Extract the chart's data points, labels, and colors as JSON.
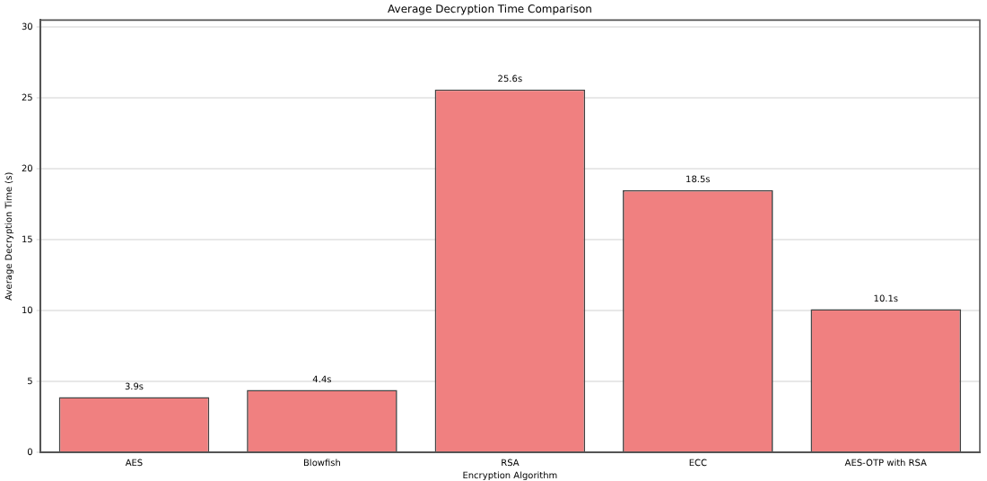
{
  "chart_data": {
    "type": "bar",
    "title": "Average Decryption Time Comparison",
    "xlabel": "Encryption Algorithm",
    "ylabel": "Average Decryption Time (s)",
    "categories": [
      "AES",
      "Blowfish",
      "RSA",
      "ECC",
      "AES-OTP with RSA"
    ],
    "values": [
      3.9,
      4.4,
      25.6,
      18.5,
      10.1
    ],
    "value_labels": [
      "3.9s",
      "4.4s",
      "25.6s",
      "18.5s",
      "10.1s"
    ],
    "color": "#f08080",
    "ylim": [
      0,
      30.5
    ],
    "yticks": [
      0,
      5,
      10,
      15,
      20,
      25,
      30
    ],
    "grid": "y"
  }
}
